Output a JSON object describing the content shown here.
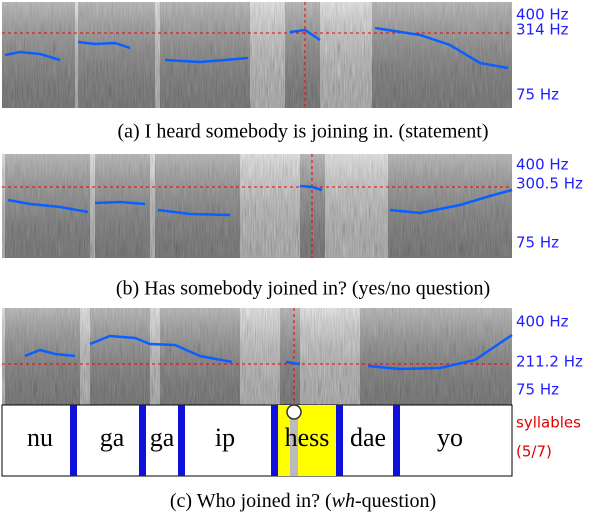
{
  "panels": [
    {
      "freq_labels": [
        "400 Hz",
        "314 Hz",
        "75 Hz"
      ],
      "caption": "(a) I heard somebody is joining in. (statement)"
    },
    {
      "freq_labels": [
        "400 Hz",
        "300.5 Hz",
        "75 Hz"
      ],
      "caption": "(b) Has somebody joined in? (yes/no question)"
    },
    {
      "freq_labels": [
        "400 Hz",
        "211.2 Hz",
        "75 Hz"
      ],
      "caption": [
        "(c) Who joined in? (",
        "wh",
        "-question)"
      ],
      "syllables": [
        "nu",
        "ga",
        "ga",
        "ip",
        "hess",
        "dae",
        "yo"
      ],
      "syllable_title": "syllables",
      "syllable_count": "(5/7)"
    }
  ]
}
